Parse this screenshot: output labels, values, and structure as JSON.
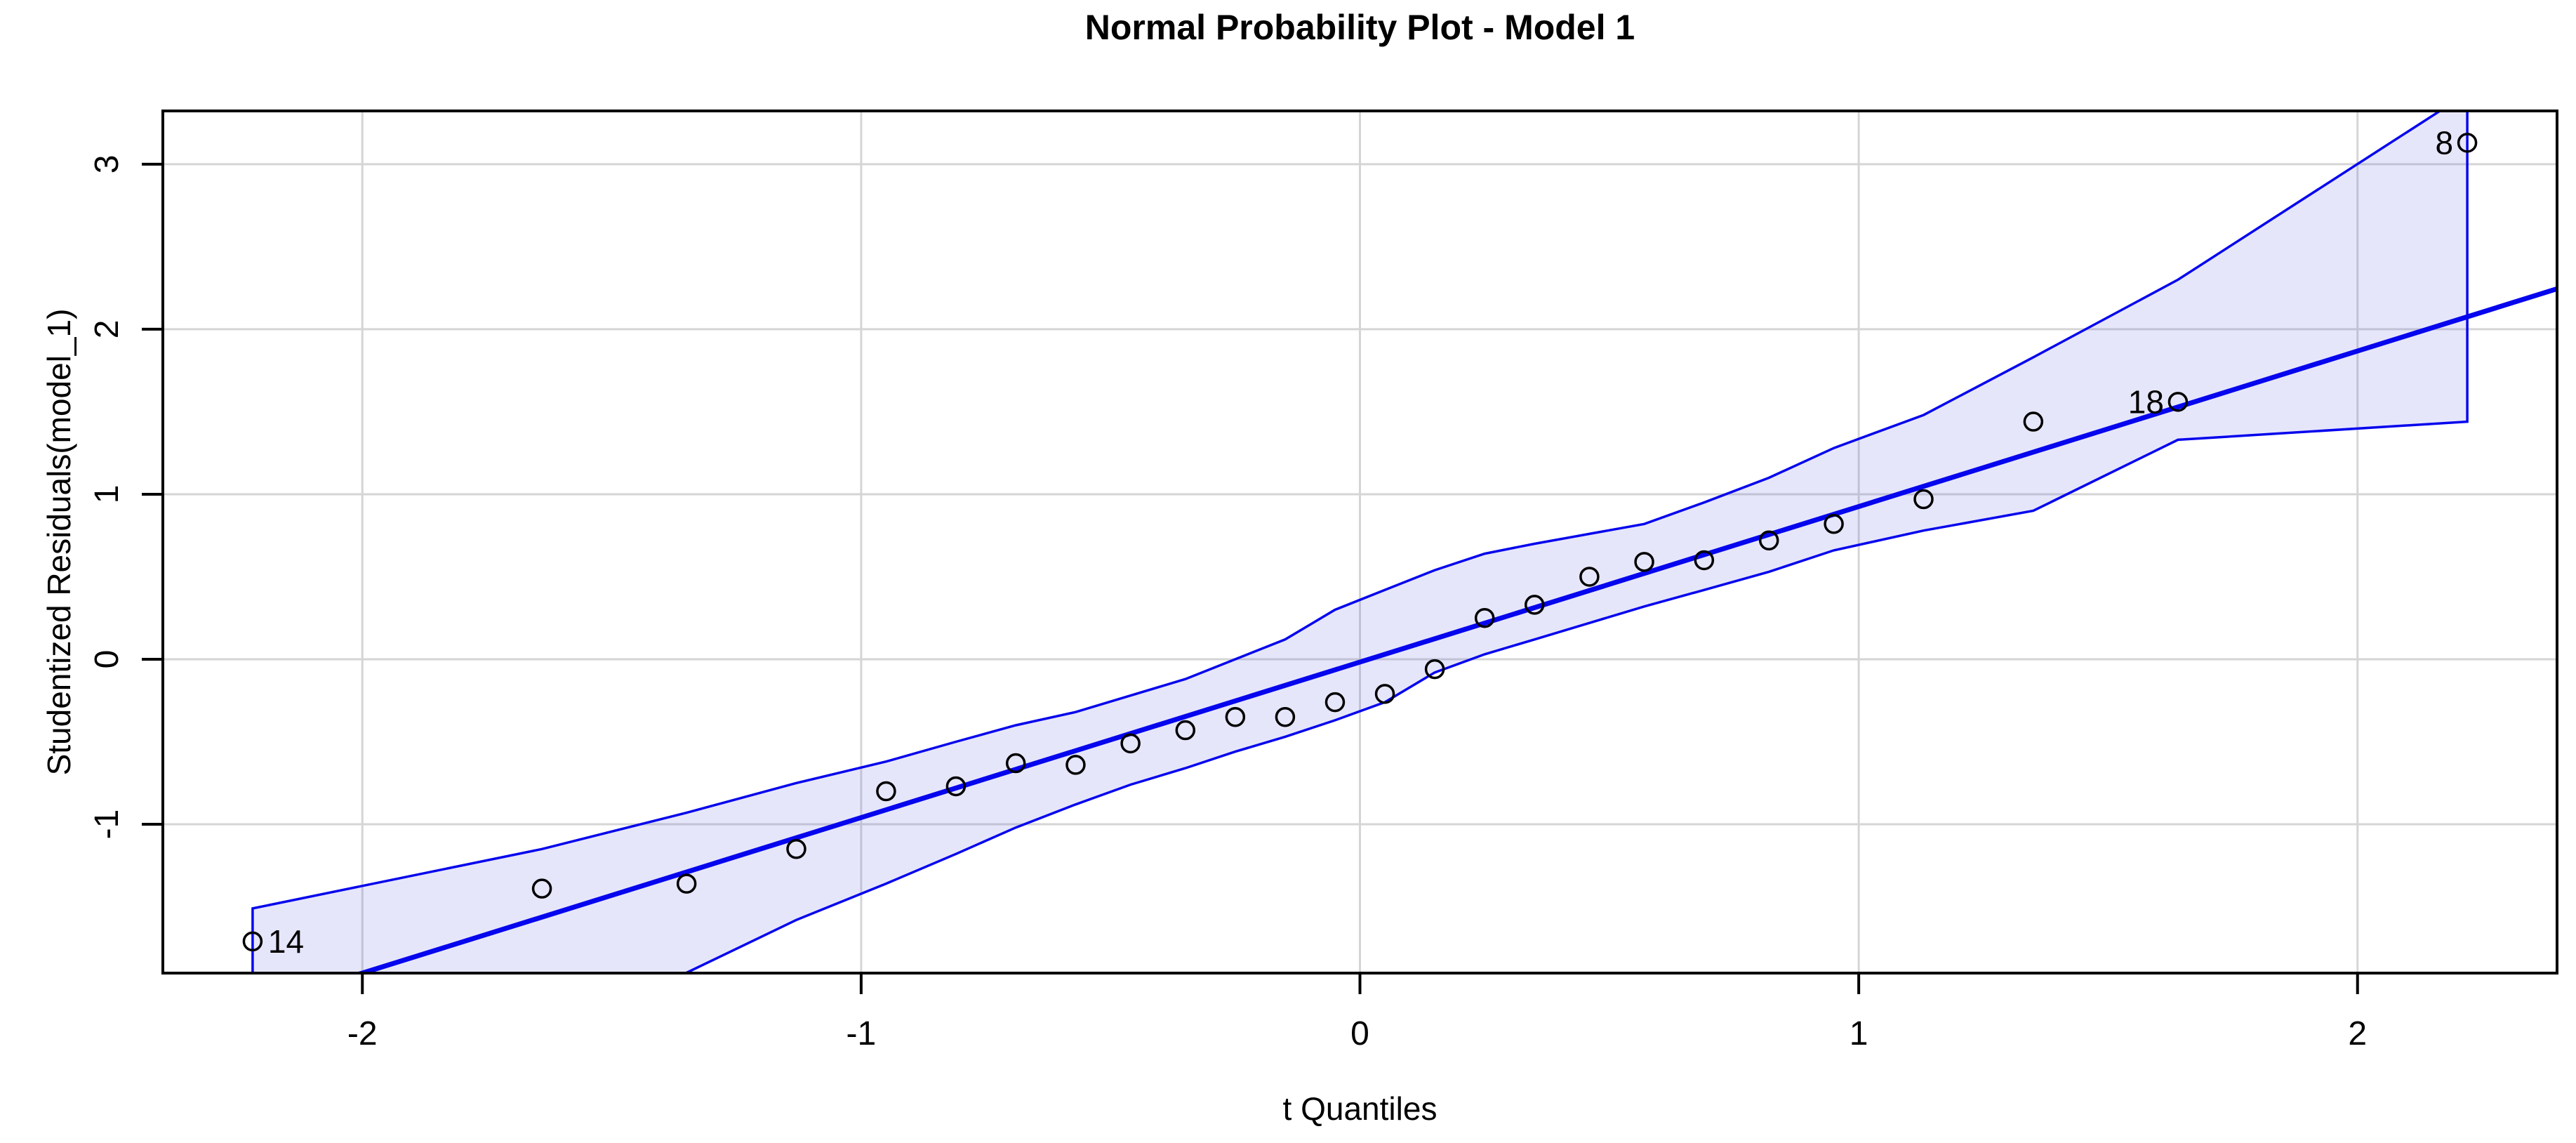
{
  "header": {
    "title": "Normal Probability Plot - Model 1"
  },
  "axes": {
    "xlabel": "t Quantiles",
    "ylabel": "Studentized Residuals(model_1)"
  },
  "colors": {
    "line_blue": "#0505ee",
    "envelope_fill": "rgba(100,100,230,0.16)",
    "grid_gray": "#d5d5d5",
    "box_black": "#000000",
    "background": "#ffffff"
  },
  "chart_data": {
    "type": "scatter",
    "subtype": "qq-plot-with-confidence-envelope",
    "title": "Normal Probability Plot - Model 1",
    "xlabel": "t Quantiles",
    "ylabel": "Studentized Residuals(model_1)",
    "xlim": [
      -2.4,
      2.4
    ],
    "ylim": [
      -1.902,
      3.323
    ],
    "xticks": [
      -2,
      -1,
      0,
      1,
      2
    ],
    "yticks": [
      -1,
      0,
      1,
      2,
      3
    ],
    "grid": true,
    "legend": "none",
    "reference_line": {
      "slope": 0.9425,
      "intercept": -0.017
    },
    "points": [
      {
        "t": -2.22,
        "r": -1.71,
        "label": "14",
        "side": "right"
      },
      {
        "t": -1.64,
        "r": -1.39
      },
      {
        "t": -1.35,
        "r": -1.36
      },
      {
        "t": -1.13,
        "r": -1.15
      },
      {
        "t": -0.95,
        "r": -0.8
      },
      {
        "t": -0.81,
        "r": -0.77
      },
      {
        "t": -0.69,
        "r": -0.63
      },
      {
        "t": -0.57,
        "r": -0.64
      },
      {
        "t": -0.46,
        "r": -0.51
      },
      {
        "t": -0.35,
        "r": -0.43
      },
      {
        "t": -0.25,
        "r": -0.35
      },
      {
        "t": -0.15,
        "r": -0.35
      },
      {
        "t": -0.05,
        "r": -0.26
      },
      {
        "t": 0.05,
        "r": -0.21
      },
      {
        "t": 0.15,
        "r": -0.06
      },
      {
        "t": 0.25,
        "r": 0.25
      },
      {
        "t": 0.35,
        "r": 0.33
      },
      {
        "t": 0.46,
        "r": 0.5
      },
      {
        "t": 0.57,
        "r": 0.59
      },
      {
        "t": 0.69,
        "r": 0.6
      },
      {
        "t": 0.82,
        "r": 0.72
      },
      {
        "t": 0.95,
        "r": 0.82
      },
      {
        "t": 1.13,
        "r": 0.97
      },
      {
        "t": 1.35,
        "r": 1.44
      },
      {
        "t": 1.64,
        "r": 1.56,
        "label": "18",
        "side": "left"
      },
      {
        "t": 2.22,
        "r": 3.13,
        "label": "8",
        "side": "left"
      }
    ],
    "envelope": {
      "upper": [
        [
          -2.22,
          -1.51
        ],
        [
          -1.64,
          -1.15
        ],
        [
          -1.35,
          -0.93
        ],
        [
          -1.13,
          -0.75
        ],
        [
          -0.95,
          -0.62
        ],
        [
          -0.81,
          -0.5
        ],
        [
          -0.69,
          -0.4
        ],
        [
          -0.57,
          -0.32
        ],
        [
          -0.46,
          -0.22
        ],
        [
          -0.35,
          -0.12
        ],
        [
          -0.25,
          0.0
        ],
        [
          -0.15,
          0.12
        ],
        [
          -0.05,
          0.3
        ],
        [
          0.05,
          0.42
        ],
        [
          0.15,
          0.54
        ],
        [
          0.25,
          0.64
        ],
        [
          0.35,
          0.7
        ],
        [
          0.46,
          0.76
        ],
        [
          0.57,
          0.82
        ],
        [
          0.69,
          0.95
        ],
        [
          0.82,
          1.1
        ],
        [
          0.95,
          1.28
        ],
        [
          1.13,
          1.48
        ],
        [
          1.35,
          1.83
        ],
        [
          1.64,
          2.3
        ],
        [
          2.22,
          3.43
        ]
      ],
      "lower": [
        [
          -2.22,
          -2.6
        ],
        [
          -1.64,
          -2.12
        ],
        [
          -1.35,
          -1.9
        ],
        [
          -1.13,
          -1.58
        ],
        [
          -0.95,
          -1.36
        ],
        [
          -0.81,
          -1.18
        ],
        [
          -0.69,
          -1.02
        ],
        [
          -0.57,
          -0.88
        ],
        [
          -0.46,
          -0.76
        ],
        [
          -0.35,
          -0.66
        ],
        [
          -0.25,
          -0.56
        ],
        [
          -0.15,
          -0.47
        ],
        [
          -0.05,
          -0.37
        ],
        [
          0.05,
          -0.26
        ],
        [
          0.15,
          -0.08
        ],
        [
          0.25,
          0.03
        ],
        [
          0.35,
          0.12
        ],
        [
          0.46,
          0.22
        ],
        [
          0.57,
          0.32
        ],
        [
          0.69,
          0.42
        ],
        [
          0.82,
          0.53
        ],
        [
          0.95,
          0.66
        ],
        [
          1.13,
          0.78
        ],
        [
          1.35,
          0.9
        ],
        [
          1.64,
          1.33
        ],
        [
          2.22,
          1.44
        ]
      ]
    }
  }
}
